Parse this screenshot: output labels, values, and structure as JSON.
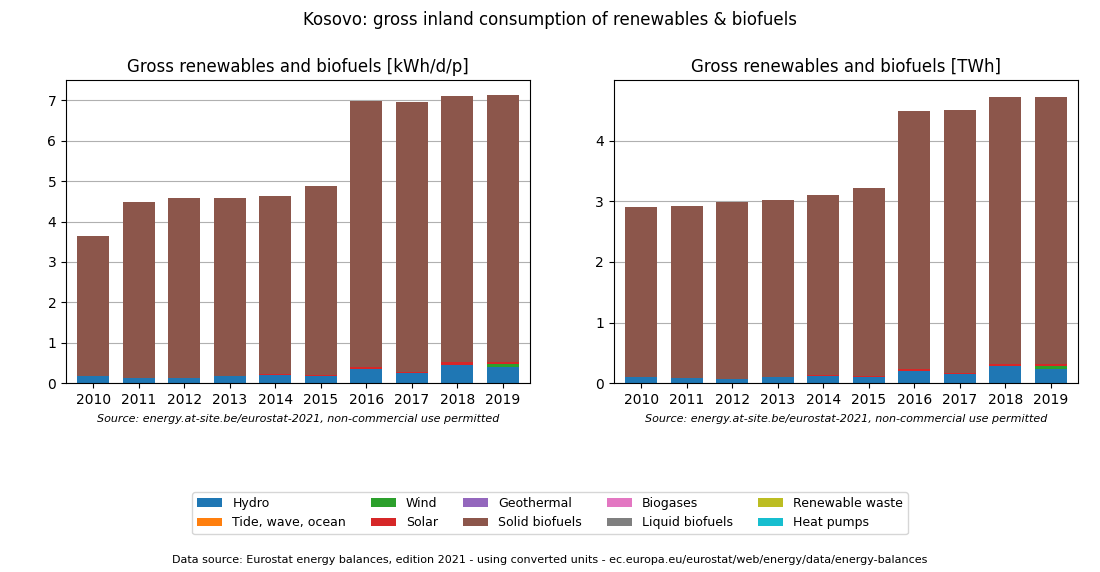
{
  "title": "Kosovo: gross inland consumption of renewables & biofuels",
  "annotations": [
    "Data source: Eurostat energy balances, edition 2021 - using converted units - ec.europa.eu/eurostat/web/energy/data/energy-balances"
  ],
  "legend": "lower center",
  "chart_data": [
    {
      "type": "bar",
      "stacked": true,
      "grid": "y",
      "title": "Gross renewables and biofuels [kWh/d/p]",
      "annotations": [
        "Source: energy.at-site.be/eurostat-2021, non-commercial use permitted"
      ],
      "categories": [
        "2010",
        "2011",
        "2012",
        "2013",
        "2014",
        "2015",
        "2016",
        "2017",
        "2018",
        "2019"
      ],
      "ylim": [
        0,
        7.5
      ],
      "yticks": [
        0,
        1,
        2,
        3,
        4,
        5,
        6,
        7
      ],
      "series": [
        {
          "name": "Hydro",
          "values": [
            0.17,
            0.14,
            0.12,
            0.17,
            0.21,
            0.18,
            0.35,
            0.25,
            0.46,
            0.4
          ]
        },
        {
          "name": "Tide, wave, ocean",
          "values": [
            0.0,
            0.0,
            0.0,
            0.0,
            0.0,
            0.0,
            0.0,
            0.0,
            0.0,
            0.0
          ]
        },
        {
          "name": "Wind",
          "values": [
            0.0,
            0.0,
            0.0,
            0.0,
            0.0,
            0.0,
            0.0,
            0.0,
            0.0,
            0.08
          ]
        },
        {
          "name": "Solar",
          "values": [
            0.0,
            0.0,
            0.0,
            0.0,
            0.01,
            0.02,
            0.05,
            0.04,
            0.06,
            0.05
          ]
        },
        {
          "name": "Geothermal",
          "values": [
            0.0,
            0.0,
            0.0,
            0.0,
            0.0,
            0.0,
            0.0,
            0.0,
            0.0,
            0.0
          ]
        },
        {
          "name": "Solid biofuels",
          "values": [
            3.47,
            4.35,
            4.47,
            4.42,
            4.4,
            4.69,
            6.58,
            6.67,
            6.59,
            6.6
          ]
        },
        {
          "name": "Biogases",
          "values": [
            0.0,
            0.0,
            0.0,
            0.0,
            0.0,
            0.0,
            0.0,
            0.0,
            0.0,
            0.0
          ]
        },
        {
          "name": "Liquid biofuels",
          "values": [
            0.0,
            0.0,
            0.0,
            0.0,
            0.0,
            0.0,
            0.0,
            0.0,
            0.0,
            0.0
          ]
        },
        {
          "name": "Renewable waste",
          "values": [
            0.0,
            0.0,
            0.0,
            0.0,
            0.0,
            0.0,
            0.0,
            0.0,
            0.0,
            0.0
          ]
        },
        {
          "name": "Heat pumps",
          "values": [
            0.0,
            0.0,
            0.0,
            0.0,
            0.0,
            0.0,
            0.0,
            0.0,
            0.0,
            0.0
          ]
        }
      ]
    },
    {
      "type": "bar",
      "stacked": true,
      "grid": "y",
      "title": "Gross renewables and biofuels [TWh]",
      "annotations": [
        "Source: energy.at-site.be/eurostat-2021, non-commercial use permitted"
      ],
      "categories": [
        "2010",
        "2011",
        "2012",
        "2013",
        "2014",
        "2015",
        "2016",
        "2017",
        "2018",
        "2019"
      ],
      "ylim": [
        0,
        5.0
      ],
      "yticks": [
        0,
        1,
        2,
        3,
        4
      ],
      "series": [
        {
          "name": "Hydro",
          "values": [
            0.1,
            0.08,
            0.07,
            0.1,
            0.12,
            0.11,
            0.21,
            0.15,
            0.28,
            0.24
          ]
        },
        {
          "name": "Tide, wave, ocean",
          "values": [
            0.0,
            0.0,
            0.0,
            0.0,
            0.0,
            0.0,
            0.0,
            0.0,
            0.0,
            0.0
          ]
        },
        {
          "name": "Wind",
          "values": [
            0.0,
            0.0,
            0.0,
            0.0,
            0.0,
            0.0,
            0.0,
            0.0,
            0.0,
            0.05
          ]
        },
        {
          "name": "Solar",
          "values": [
            0.0,
            0.0,
            0.0,
            0.0,
            0.01,
            0.01,
            0.03,
            0.02,
            0.04,
            0.03
          ]
        },
        {
          "name": "Geothermal",
          "values": [
            0.0,
            0.0,
            0.0,
            0.0,
            0.0,
            0.0,
            0.0,
            0.0,
            0.0,
            0.0
          ]
        },
        {
          "name": "Solid biofuels",
          "values": [
            2.8,
            2.84,
            2.92,
            2.93,
            2.97,
            3.1,
            4.25,
            4.33,
            4.4,
            4.4
          ]
        },
        {
          "name": "Biogases",
          "values": [
            0.0,
            0.0,
            0.0,
            0.0,
            0.0,
            0.0,
            0.0,
            0.0,
            0.0,
            0.0
          ]
        },
        {
          "name": "Liquid biofuels",
          "values": [
            0.0,
            0.0,
            0.0,
            0.0,
            0.0,
            0.0,
            0.0,
            0.0,
            0.0,
            0.0
          ]
        },
        {
          "name": "Renewable waste",
          "values": [
            0.0,
            0.0,
            0.0,
            0.0,
            0.0,
            0.0,
            0.0,
            0.0,
            0.0,
            0.0
          ]
        },
        {
          "name": "Heat pumps",
          "values": [
            0.0,
            0.0,
            0.0,
            0.0,
            0.0,
            0.0,
            0.0,
            0.0,
            0.0,
            0.0
          ]
        }
      ]
    }
  ]
}
